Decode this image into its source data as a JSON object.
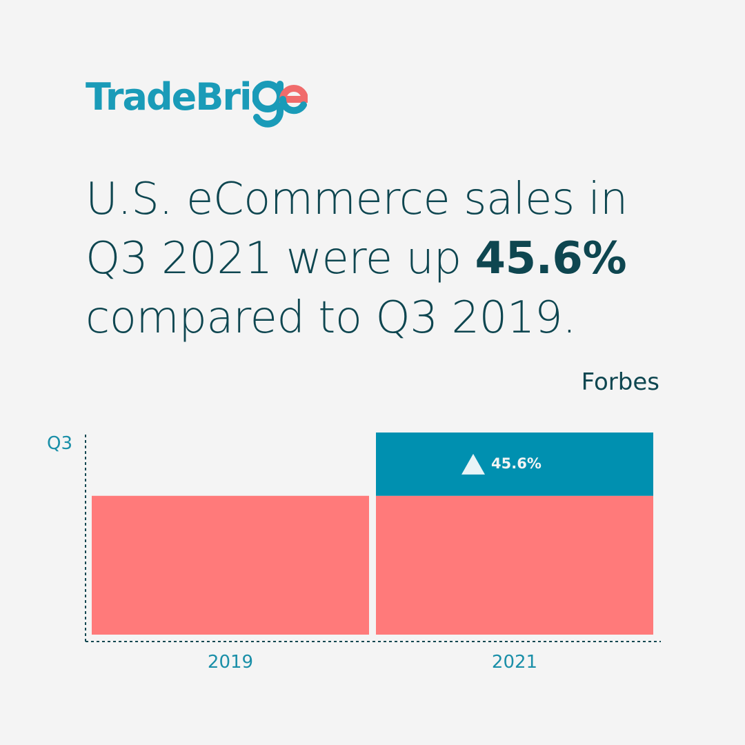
{
  "brand": {
    "logo_text": "TradeBri",
    "logo_tail": "ge",
    "color": "#1a9bb8",
    "accent": "#f06b6b"
  },
  "headline": {
    "line1": "U.S. eCommerce sales in",
    "line2_prefix": "Q3 2021 were up ",
    "line2_bold": "45.6%",
    "line3": "compared to Q3 2019."
  },
  "source": "Forbes",
  "chart_data": {
    "type": "bar",
    "categories": [
      "2019",
      "2021"
    ],
    "series": [
      {
        "values": [
          1.0,
          1.0
        ],
        "color": "#ff7a7a"
      },
      {
        "values": [
          0,
          0.456
        ],
        "color": "#0090b0",
        "labels": [
          "",
          "45.6%"
        ]
      }
    ],
    "y_tick_label": "Q3",
    "ylim": [
      0,
      1.456
    ],
    "stacked": true,
    "increase_icon": "up-triangle-icon"
  },
  "colors": {
    "background": "#f4f4f4",
    "text_dark": "#0e4650",
    "axis": "#0e4650",
    "tick_text": "#1a8fa8"
  }
}
